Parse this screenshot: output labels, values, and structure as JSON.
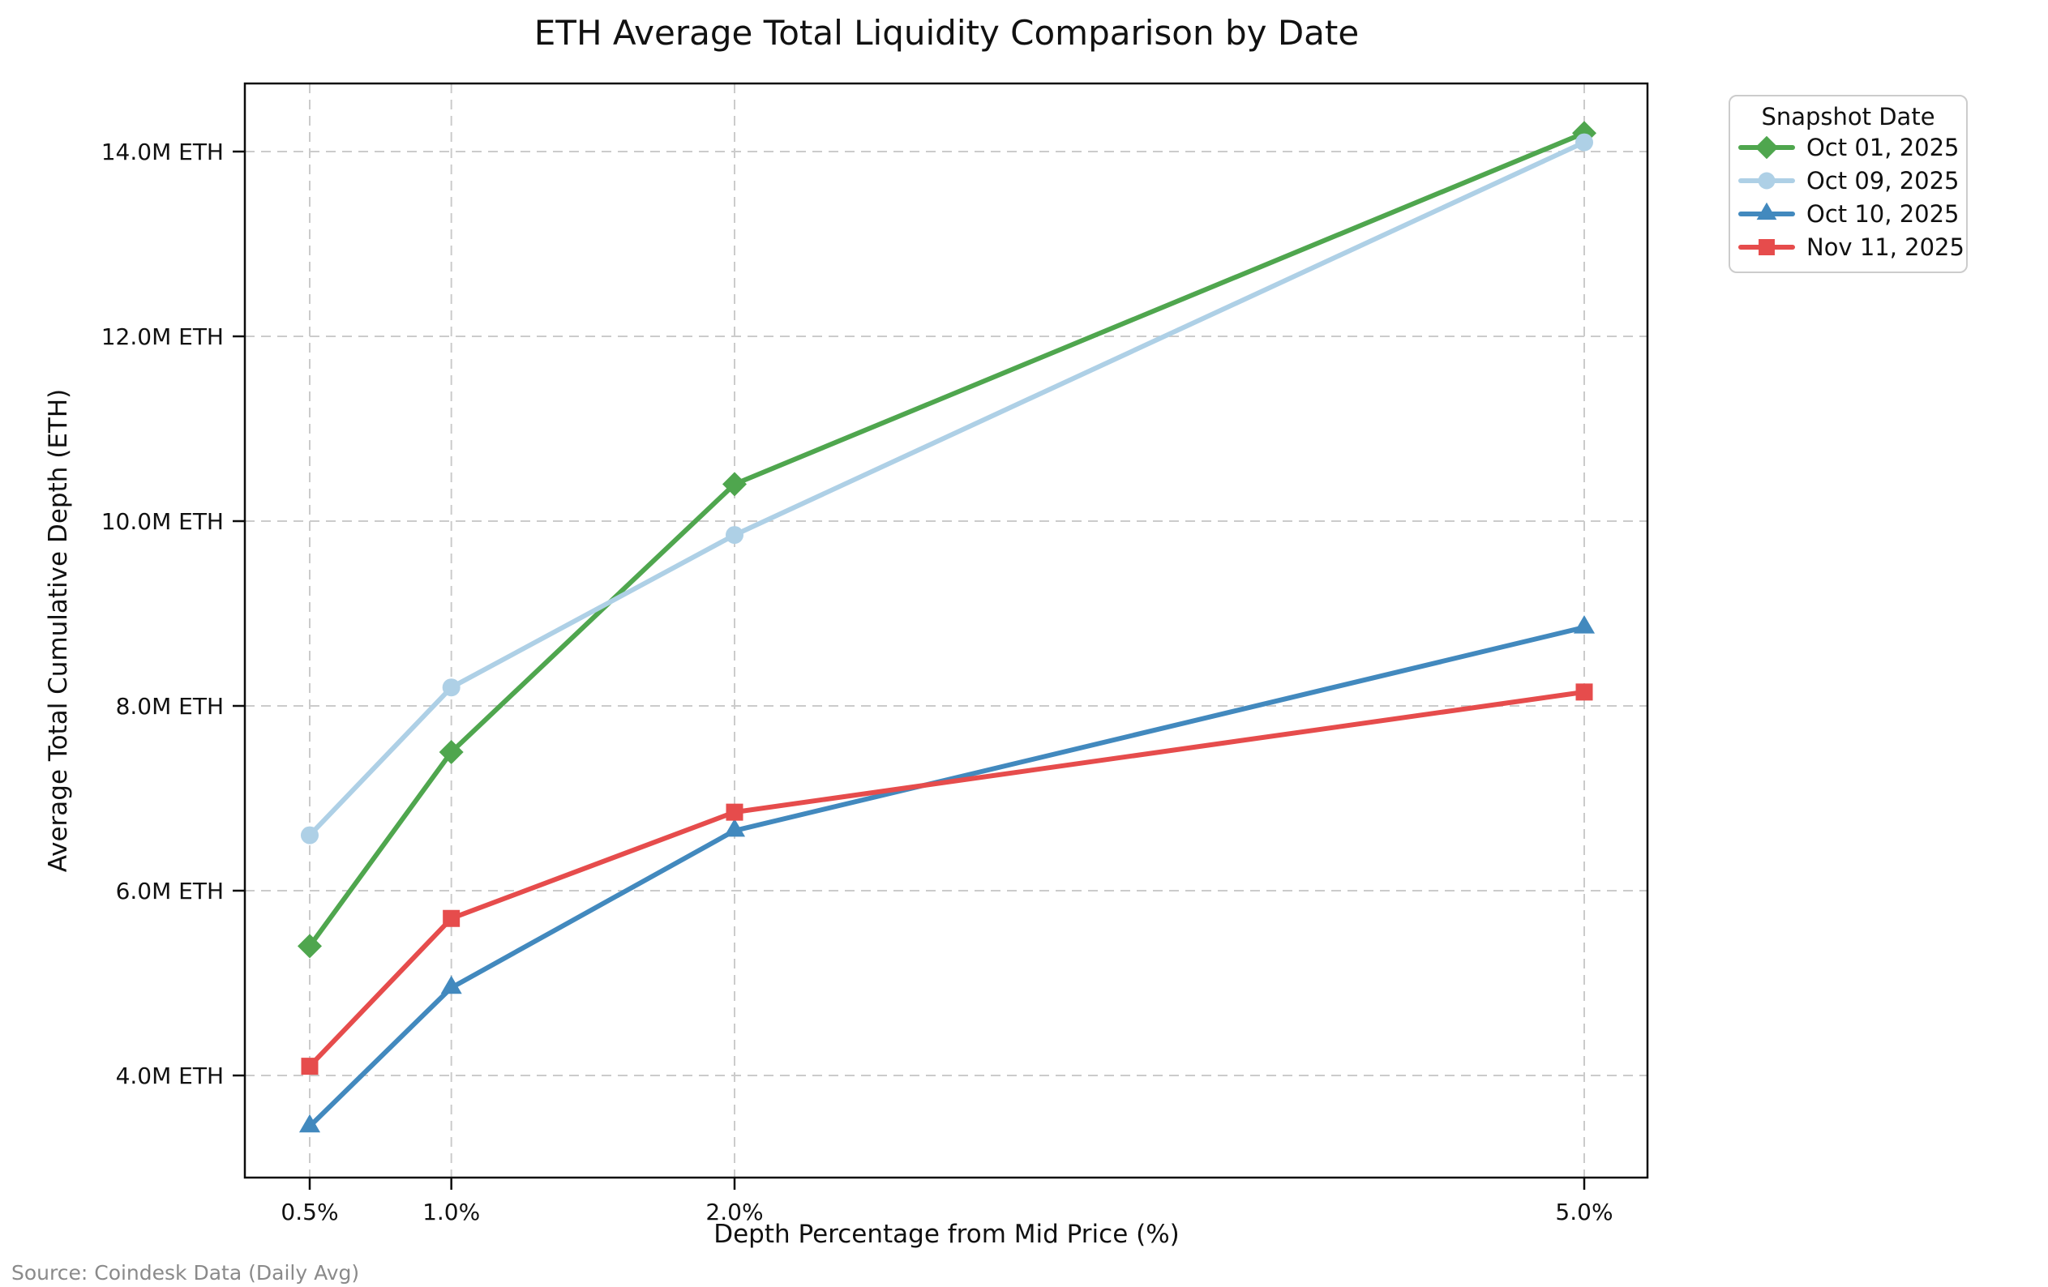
{
  "figure": {
    "source_note": "Source: Coindesk Data (Daily Avg)"
  },
  "chart_data": {
    "type": "line",
    "title": "ETH Average Total Liquidity Comparison by Date",
    "xlabel": "Depth Percentage from Mid Price (%)",
    "ylabel": "Average Total Cumulative Depth (ETH)",
    "x": [
      0.5,
      1.0,
      2.0,
      5.0
    ],
    "x_tick_labels": [
      "0.5%",
      "1.0%",
      "2.0%",
      "5.0%"
    ],
    "y_ticks_m_eth": [
      4.0,
      6.0,
      8.0,
      10.0,
      12.0,
      14.0
    ],
    "y_tick_labels": [
      "4.0M ETH",
      "6.0M ETH",
      "8.0M ETH",
      "10.0M ETH",
      "12.0M ETH",
      "14.0M ETH"
    ],
    "xlim": [
      0.27,
      5.23
    ],
    "ylim_m_eth": [
      2.9,
      14.74
    ],
    "grid": true,
    "grid_style": "dashed",
    "legend": {
      "title": "Snapshot Date",
      "position": "outside-upper-right"
    },
    "series": [
      {
        "name": "Oct 01, 2025",
        "color": "#4fa64e",
        "marker": "diamond",
        "values_m_eth": [
          5.4,
          7.5,
          10.4,
          14.2
        ]
      },
      {
        "name": "Oct 09, 2025",
        "color": "#aed0e6",
        "marker": "circle",
        "values_m_eth": [
          6.6,
          8.2,
          9.85,
          14.1
        ]
      },
      {
        "name": "Oct 10, 2025",
        "color": "#4289be",
        "marker": "triangle-up",
        "values_m_eth": [
          3.45,
          4.95,
          6.65,
          8.85
        ]
      },
      {
        "name": "Nov 11, 2025",
        "color": "#e64c4c",
        "marker": "square",
        "values_m_eth": [
          4.1,
          5.7,
          6.85,
          8.15
        ]
      }
    ],
    "colors": {
      "grid": "#cbcbcb",
      "spine": "#0c0c0c",
      "text": "#111111",
      "source_text": "#8a8a8a"
    }
  }
}
